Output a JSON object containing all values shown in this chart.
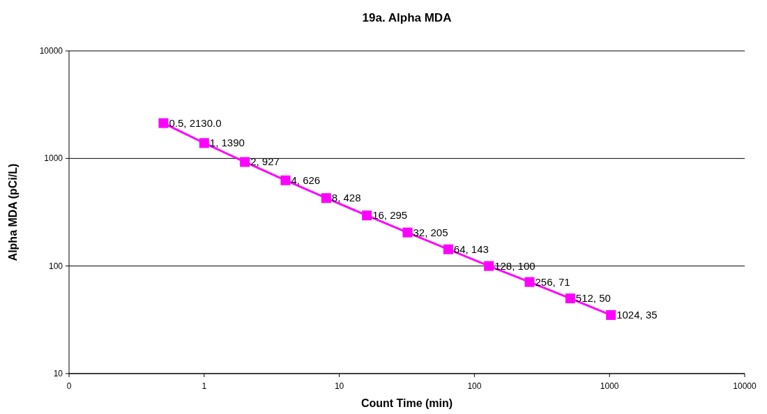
{
  "chart_data": {
    "type": "line",
    "title": "19a.  Alpha MDA",
    "xlabel": "Count Time (min)",
    "ylabel": "Alpha MDA (pCi/L)",
    "log": "xy",
    "grid": "y",
    "marker": "square",
    "line_style": "solid",
    "xlim": [
      0.1,
      10000
    ],
    "xticks": [
      {
        "value": 0.1,
        "label": "0"
      },
      1,
      10,
      100,
      1000,
      10000
    ],
    "ylim": [
      10,
      10000
    ],
    "yticks": [
      10,
      100,
      1000,
      10000
    ],
    "x": [
      0.5,
      1,
      2,
      4,
      8,
      16,
      32,
      64,
      128,
      256,
      512,
      1024
    ],
    "series": [
      {
        "color": "#ff00ff",
        "values": [
          2130,
          1390,
          927,
          626,
          428,
          295,
          205,
          143,
          100,
          71,
          50,
          35
        ],
        "value_labels": [
          "0.5, 2130.0",
          "1, 1390",
          "2, 927",
          "4, 626",
          "8, 428",
          "16, 295",
          "32, 205",
          "64, 143",
          "128, 100",
          "256, 71",
          "512, 50",
          "1024, 35"
        ]
      }
    ]
  }
}
